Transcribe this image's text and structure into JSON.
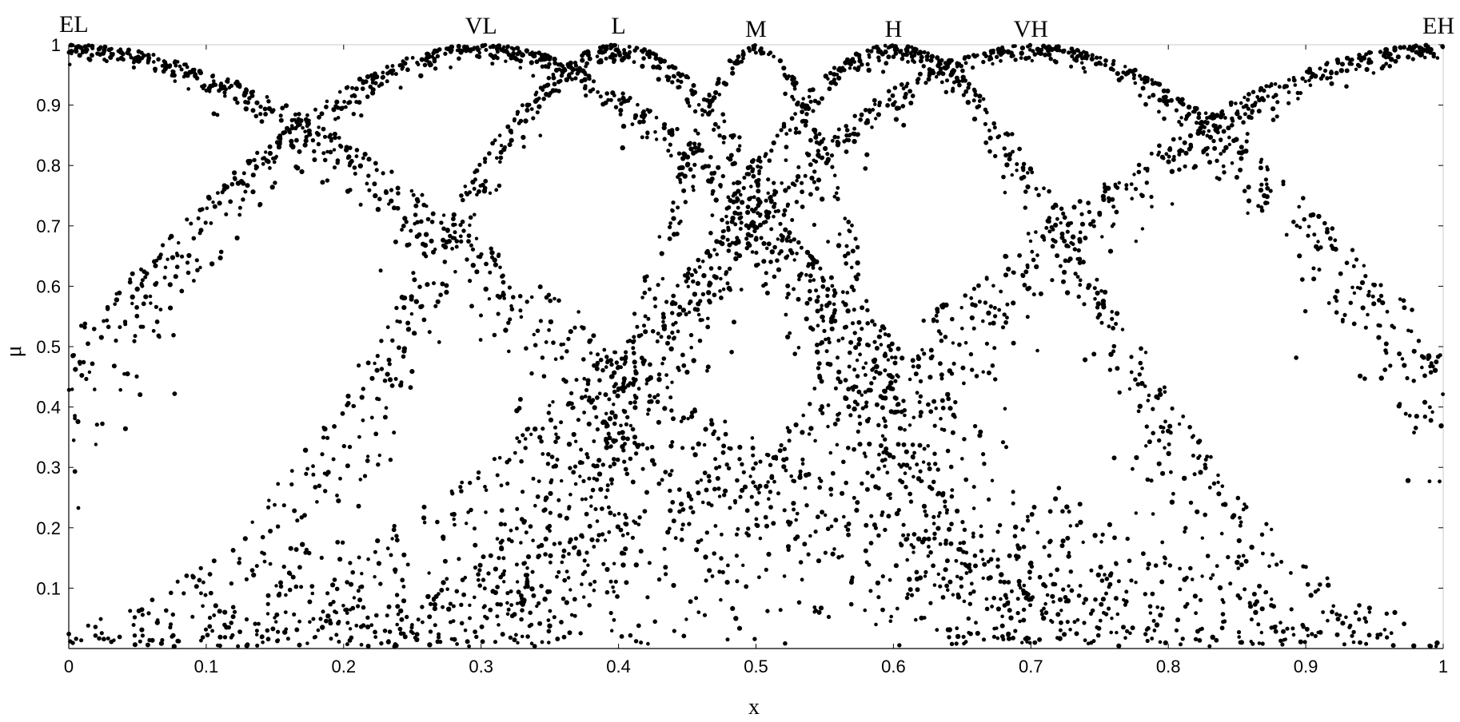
{
  "chart_data": {
    "type": "scatter",
    "title": "",
    "xlabel": "x",
    "ylabel": "μ",
    "xlim": [
      0,
      1
    ],
    "ylim": [
      0,
      1
    ],
    "grid": false,
    "x_ticks": [
      "0",
      "0.1",
      "0.2",
      "0.3",
      "0.4",
      "0.5",
      "0.6",
      "0.7",
      "0.8",
      "0.9",
      "1"
    ],
    "y_ticks": [
      "0.1",
      "0.2",
      "0.3",
      "0.4",
      "0.5",
      "0.6",
      "0.7",
      "0.8",
      "0.9",
      "1"
    ],
    "point_color": "#000000",
    "sets": [
      {
        "name": "EL",
        "center": 0.0,
        "width": 0.58
      },
      {
        "name": "VL",
        "center": 0.3,
        "width": 0.44
      },
      {
        "name": "L",
        "center": 0.4,
        "width": 0.26
      },
      {
        "name": "M",
        "center": 0.5,
        "width": 0.14
      },
      {
        "name": "H",
        "center": 0.6,
        "width": 0.26
      },
      {
        "name": "VH",
        "center": 0.7,
        "width": 0.44
      },
      {
        "name": "EH",
        "center": 1.0,
        "width": 0.58
      }
    ],
    "points_per_set": 1100
  }
}
